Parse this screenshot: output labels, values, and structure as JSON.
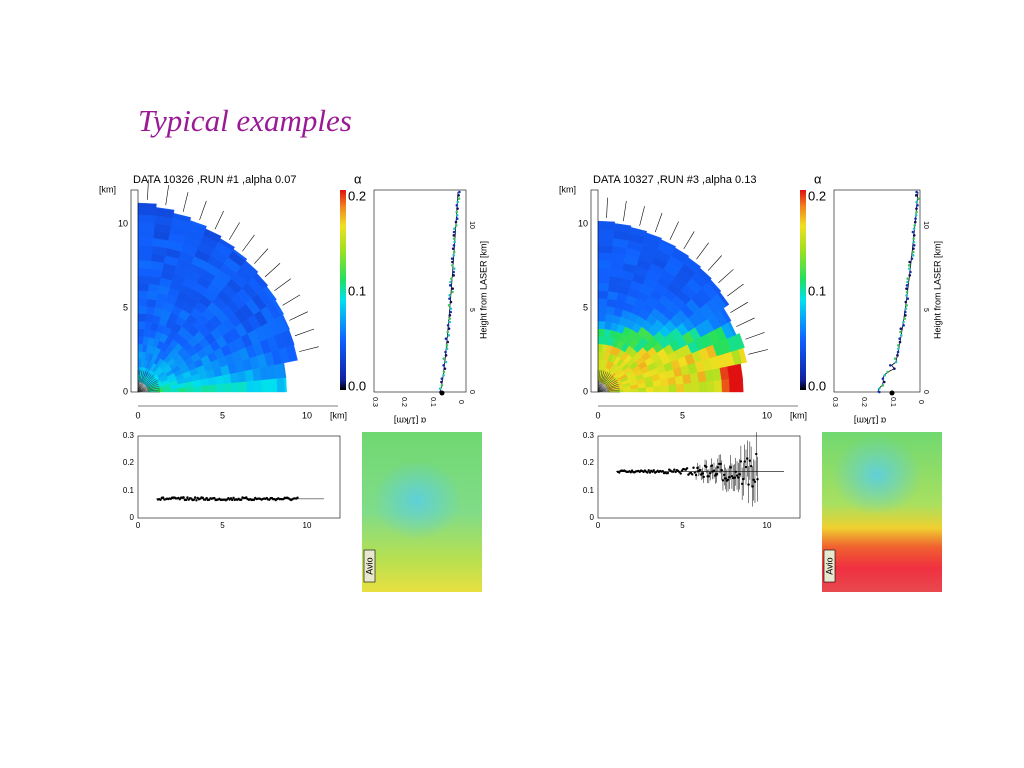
{
  "title": "Typical examples",
  "panels": [
    {
      "header": "DATA 10326 ,RUN #1 ,alpha 0.07",
      "alpha_symbol": "α",
      "colorbar_ticks": [
        "0.2",
        "0.1",
        "0.0"
      ],
      "map_y_unit": "[km]",
      "map_y_ticks": [
        "10",
        "5",
        "0"
      ],
      "map_x_ticks": [
        "0",
        "5",
        "10"
      ],
      "map_x_unit": "[km]",
      "profile_y_label": "Height from LASER  [km]",
      "profile_y_ticks": [
        "0",
        "5",
        "10"
      ],
      "profile_x_label": "α    [1/km]",
      "profile_x_ticks": [
        "0.3",
        "0.2",
        "0.1",
        "0"
      ],
      "series_y_ticks": [
        "0.3",
        "0.2",
        "0.1",
        "0"
      ],
      "series_x_ticks": [
        "0",
        "5",
        "10"
      ],
      "camera_label": "Avio"
    },
    {
      "header": "DATA 10327 ,RUN #3 ,alpha 0.13",
      "alpha_symbol": "α",
      "colorbar_ticks": [
        "0.2",
        "0.1",
        "0.0"
      ],
      "map_y_unit": "[km]",
      "map_y_ticks": [
        "10",
        "5",
        "0"
      ],
      "map_x_ticks": [
        "0",
        "5",
        "10"
      ],
      "map_x_unit": "[km]",
      "profile_y_label": "Height from LASER  [km]",
      "profile_y_ticks": [
        "0",
        "5",
        "10"
      ],
      "profile_x_label": "α    [1/km]",
      "profile_x_ticks": [
        "0.3",
        "0.2",
        "0.1",
        "0"
      ],
      "series_y_ticks": [
        "0.3",
        "0.2",
        "0.1",
        "0"
      ],
      "series_x_ticks": [
        "0",
        "5",
        "10"
      ],
      "camera_label": "Avio"
    }
  ]
}
